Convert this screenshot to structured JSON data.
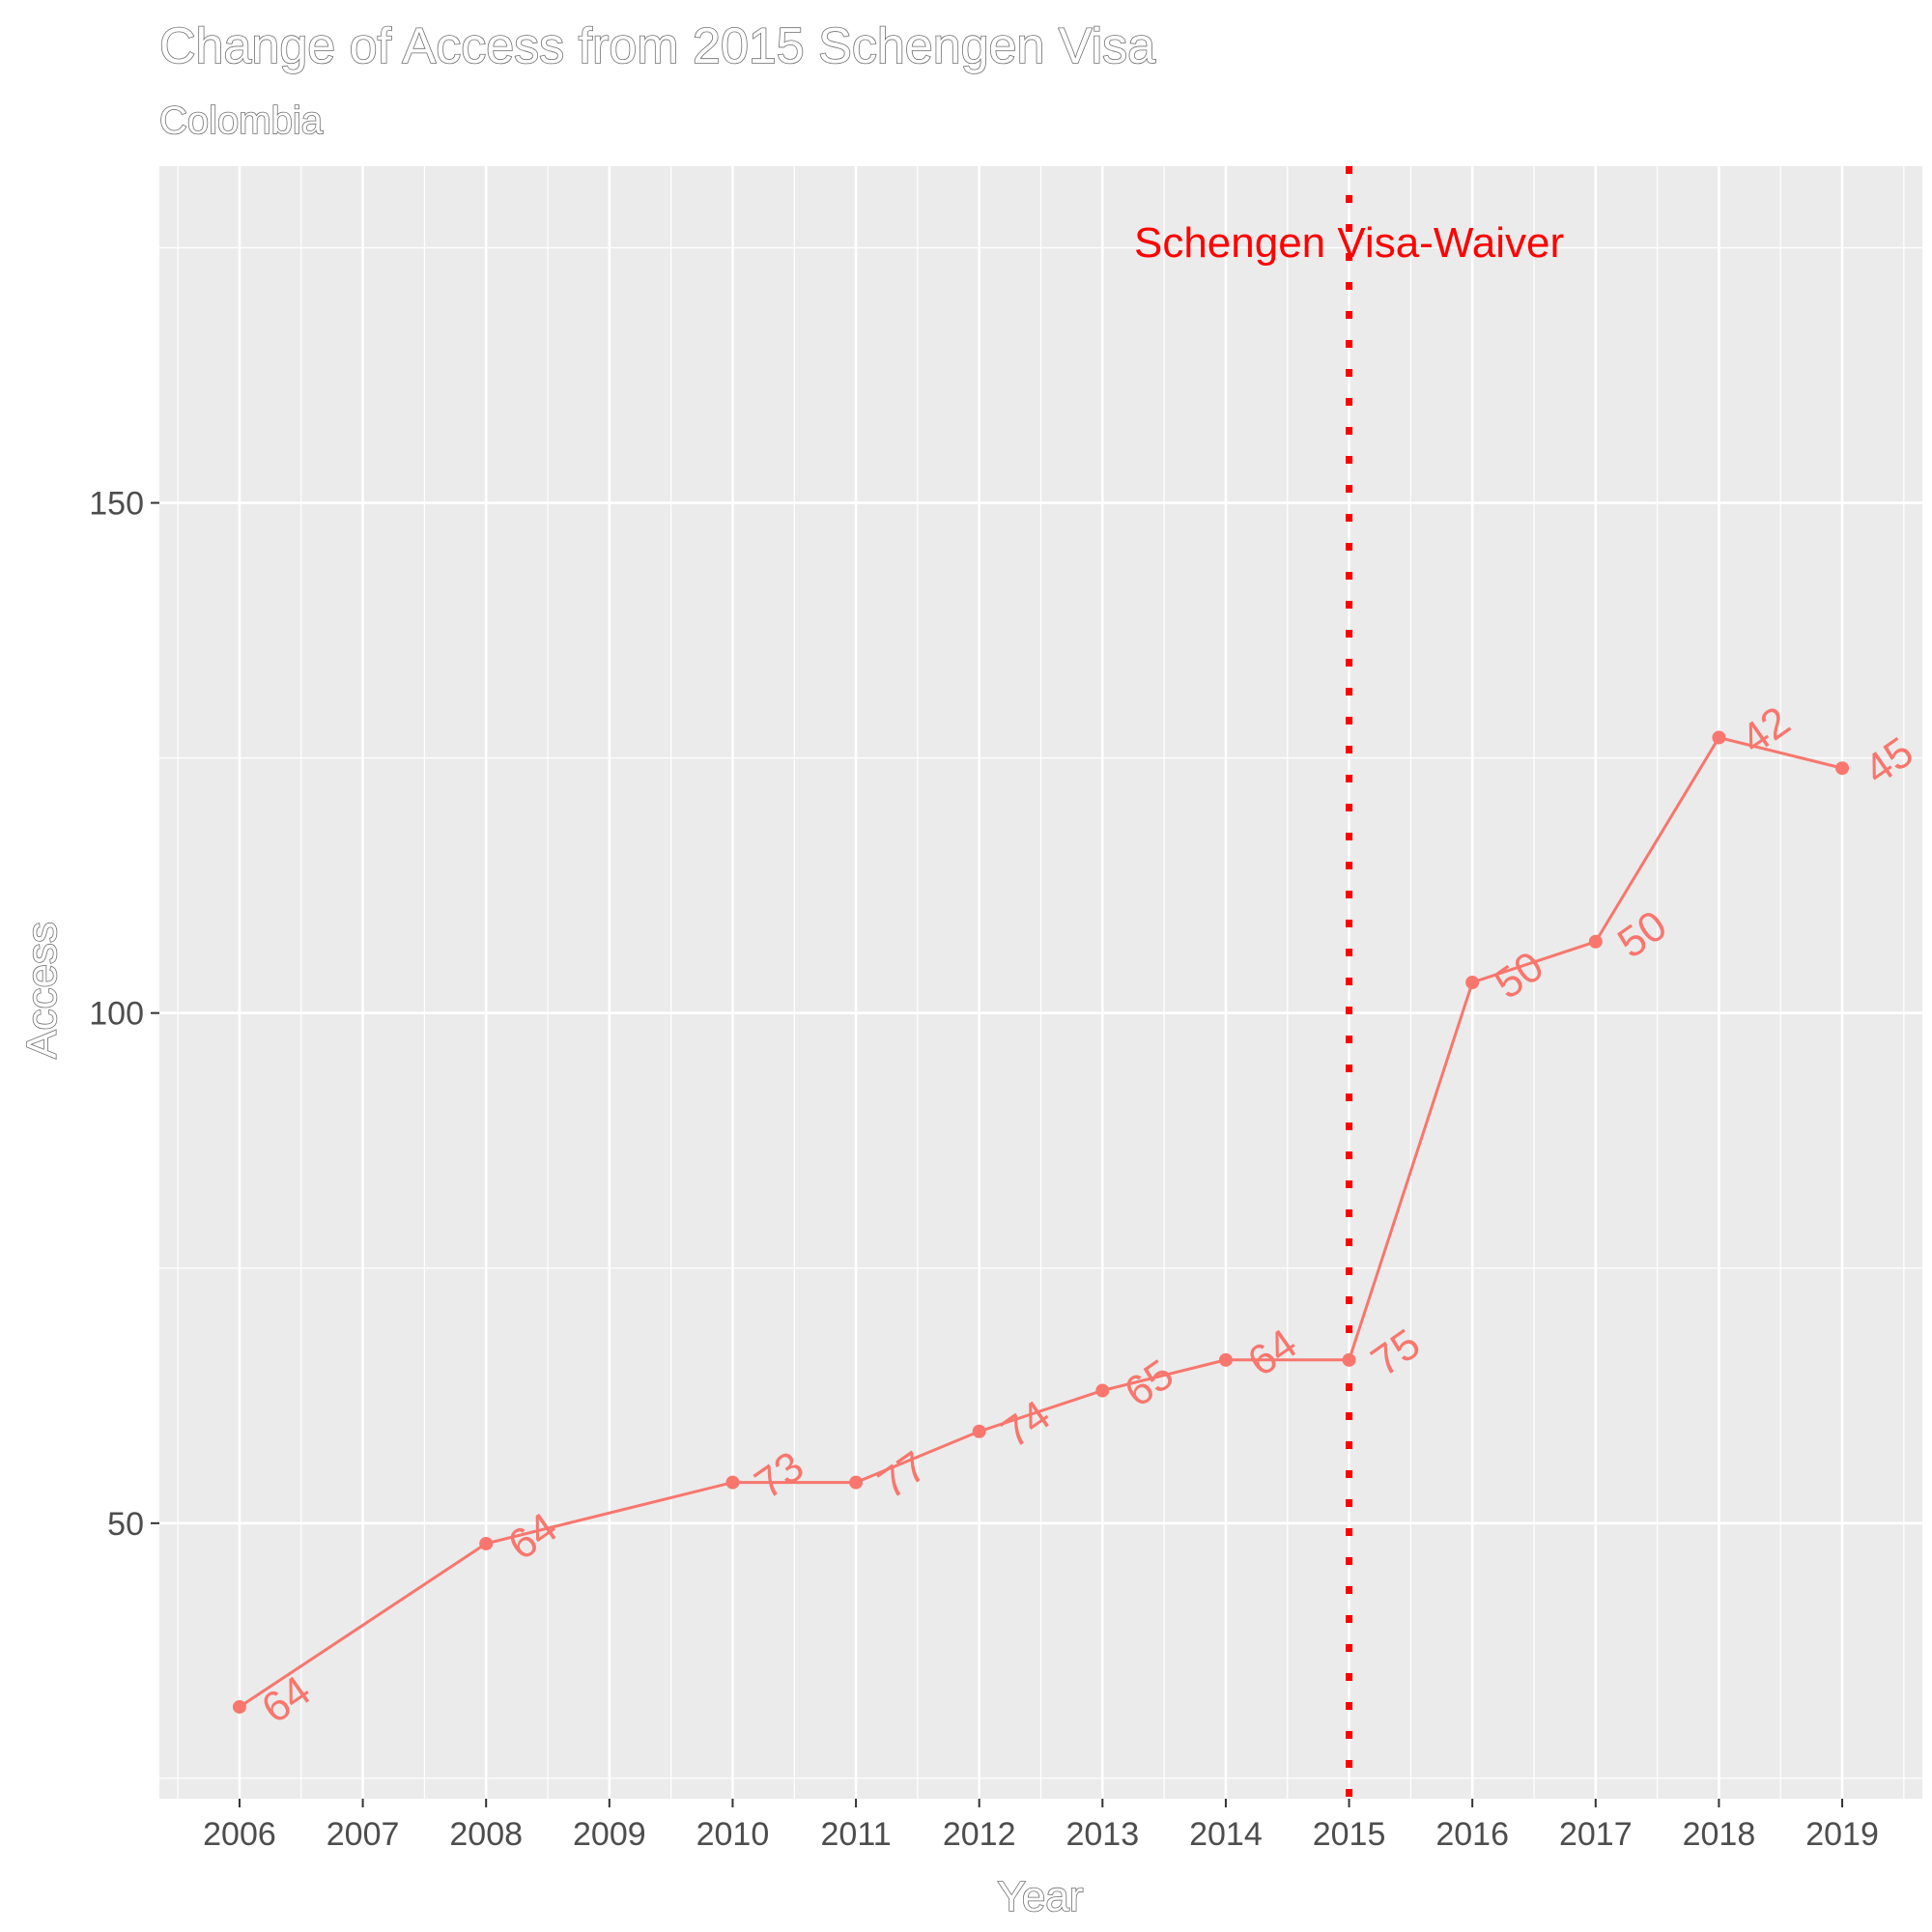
{
  "chart_data": {
    "type": "line",
    "title": "Change of Access from 2015 Schengen Visa",
    "subtitle": "Colombia",
    "xlabel": "Year",
    "ylabel": "Access",
    "x": [
      2006,
      2008,
      2010,
      2011,
      2012,
      2013,
      2014,
      2015,
      2016,
      2017,
      2018,
      2019
    ],
    "series": [
      {
        "values": [
          32,
          48,
          54,
          54,
          59,
          63,
          66,
          66,
          103,
          107,
          127,
          124
        ],
        "point_labels": [
          "64",
          "64",
          "73",
          "77",
          "74",
          "65",
          "64",
          "75",
          "50",
          "50",
          "42",
          "45"
        ]
      }
    ],
    "xlim": [
      2005.35,
      2019.65
    ],
    "ylim": [
      23,
      183
    ],
    "x_ticks": [
      "2006",
      "2007",
      "2008",
      "2009",
      "2010",
      "2011",
      "2012",
      "2013",
      "2014",
      "2015",
      "2016",
      "2017",
      "2018",
      "2019"
    ],
    "y_ticks": [
      "50",
      "100",
      "150"
    ],
    "grid": true,
    "legend": "none",
    "annotations": [
      {
        "type": "vline",
        "x": 2015,
        "style": "dotted",
        "label": "Schengen Visa-Waiver"
      }
    ],
    "colors": {
      "series": "#f8766d",
      "annotation": "#ff0000",
      "panel_bg": "#ebebeb",
      "grid": "#ffffff",
      "axis_text": "#4d4d4d"
    }
  }
}
